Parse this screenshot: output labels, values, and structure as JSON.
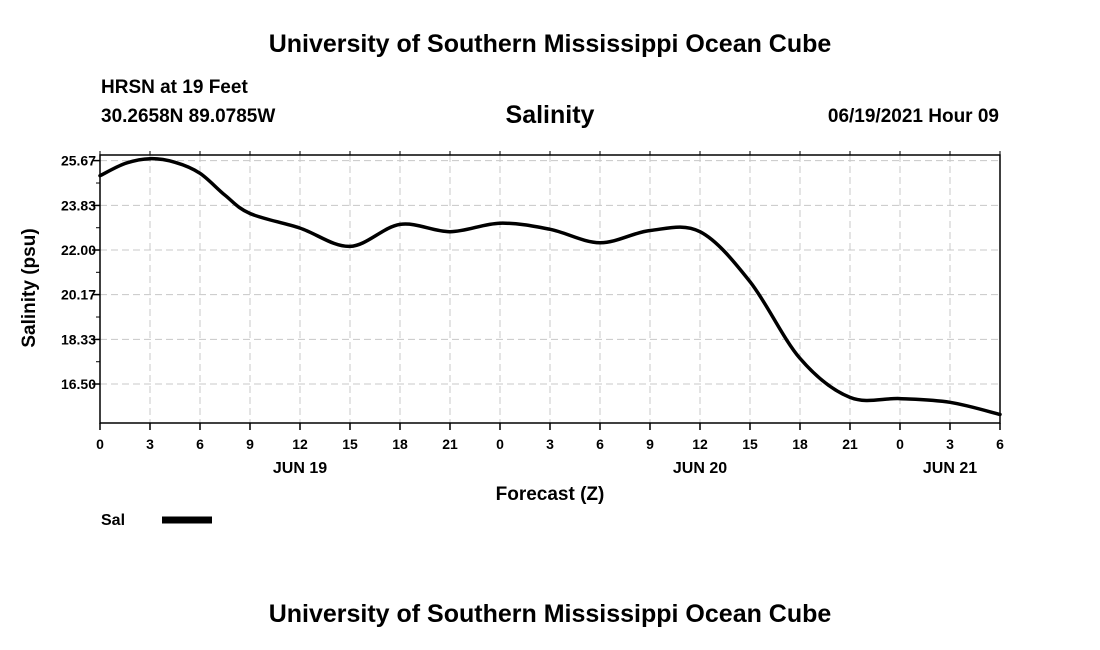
{
  "header": {
    "title": "University of Southern Mississippi Ocean Cube",
    "station": "HRSN at 19 Feet",
    "coords": "30.2658N  89.0785W",
    "variable": "Salinity",
    "datetime": "06/19/2021 Hour 09"
  },
  "footer": {
    "title": "University of Southern Mississippi Ocean Cube"
  },
  "legend": {
    "label": "Sal",
    "color": "#000000"
  },
  "chart_data": {
    "type": "line",
    "title": "Salinity",
    "xlabel": "Forecast (Z)",
    "ylabel": "Salinity (psu)",
    "xlim": [
      0,
      54
    ],
    "ylim": [
      14.9,
      25.9
    ],
    "x_tick_labels": [
      "0",
      "3",
      "6",
      "9",
      "12",
      "15",
      "18",
      "21",
      "0",
      "3",
      "6",
      "9",
      "12",
      "15",
      "18",
      "21",
      "0",
      "3",
      "6"
    ],
    "y_ticks": [
      16.5,
      18.33,
      20.17,
      22.0,
      23.83,
      25.67
    ],
    "y_tick_labels": [
      "16.50",
      "18.33",
      "20.17",
      "22.00",
      "23.83",
      "25.67"
    ],
    "date_labels": [
      {
        "label": "JUN 19",
        "hour": 12
      },
      {
        "label": "JUN 20",
        "hour": 36
      },
      {
        "label": "JUN 21",
        "hour": 51
      }
    ],
    "grid": true,
    "series": [
      {
        "name": "Sal",
        "color": "#000000",
        "x": [
          0,
          1.5,
          3,
          4.5,
          6,
          7.5,
          9,
          12,
          15,
          18,
          21,
          24,
          27,
          30,
          33,
          36,
          39,
          42,
          45,
          48,
          51,
          54
        ],
        "values": [
          25.05,
          25.55,
          25.75,
          25.6,
          25.15,
          24.25,
          23.5,
          22.9,
          22.15,
          23.05,
          22.75,
          23.1,
          22.85,
          22.3,
          22.8,
          22.75,
          20.7,
          17.55,
          15.95,
          15.9,
          15.75,
          15.25
        ]
      }
    ]
  }
}
